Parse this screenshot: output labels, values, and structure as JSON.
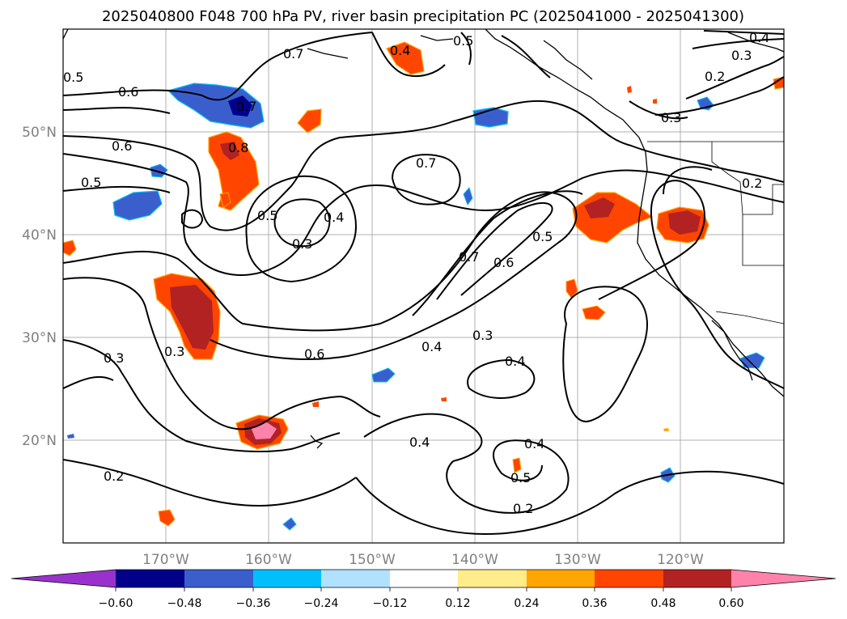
{
  "title": "2025040800 F048 700 hPa PV, river basin precipitation PC (2025041000 - 2025041300)",
  "map": {
    "lon_labels": [
      "170°W",
      "160°W",
      "150°W",
      "140°W",
      "130°W",
      "120°W"
    ],
    "lat_labels": [
      "50°N",
      "40°N",
      "30°N",
      "20°N"
    ],
    "contour_labels": [
      "0.7",
      "0.5",
      "0.4",
      "0.3",
      "0.2",
      "0.6",
      "0.7",
      "0.6",
      "0.8",
      "0.5",
      "0.7",
      "0.5",
      "0.4",
      "0.3",
      "0.3",
      "0.5",
      "0.2",
      "0.7",
      "0.6",
      "0.5",
      "0.3",
      "0.4",
      "0.3",
      "0.6",
      "0.3",
      "0.4",
      "0.4",
      "0.4",
      "0.5",
      "0.2",
      "0.2",
      "0.4"
    ]
  },
  "colorbar": {
    "ticks": [
      "−0.60",
      "−0.48",
      "−0.36",
      "−0.24",
      "−0.12",
      "0.12",
      "0.24",
      "0.36",
      "0.48",
      "0.60"
    ],
    "colors": {
      "under": "#9932cc",
      "b1": "#00008b",
      "b2": "#3a5fcd",
      "b3": "#00bfff",
      "b4": "#b0e2ff",
      "b5": "#ffffff",
      "b6": "#ffec8b",
      "b7": "#ffa500",
      "b8": "#ff4500",
      "b9": "#b22222",
      "over": "#ff82ab"
    }
  }
}
